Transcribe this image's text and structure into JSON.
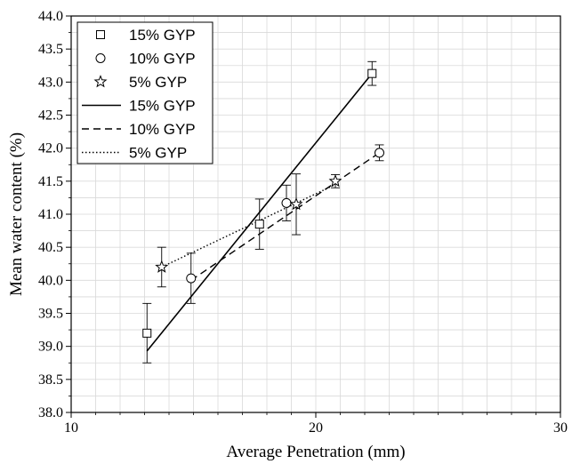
{
  "chart_data": {
    "type": "scatter",
    "xlabel": "Average Penetration (mm)",
    "ylabel": "Mean water content (%)",
    "xlim": [
      10,
      30
    ],
    "ylim": [
      38.0,
      44.0
    ],
    "x_ticks": [
      "10",
      "20",
      "30"
    ],
    "y_ticks": [
      "38.0",
      "38.5",
      "39.0",
      "39.5",
      "40.0",
      "40.5",
      "41.0",
      "41.5",
      "42.0",
      "42.5",
      "43.0",
      "43.5",
      "44.0"
    ],
    "grid": true,
    "legend_position": "top-left",
    "series": [
      {
        "name": "15% GYP",
        "marker": "square",
        "points": [
          {
            "x": 13.1,
            "y": 39.2,
            "err": 0.45
          },
          {
            "x": 17.7,
            "y": 40.85,
            "err": 0.38
          },
          {
            "x": 22.3,
            "y": 43.13,
            "err": 0.18
          }
        ]
      },
      {
        "name": "10% GYP",
        "marker": "circle",
        "points": [
          {
            "x": 14.9,
            "y": 40.03,
            "err": 0.38
          },
          {
            "x": 18.8,
            "y": 41.17,
            "err": 0.27
          },
          {
            "x": 22.6,
            "y": 41.93,
            "err": 0.12
          }
        ]
      },
      {
        "name": "5% GYP",
        "marker": "star",
        "points": [
          {
            "x": 13.7,
            "y": 40.2,
            "err": 0.3
          },
          {
            "x": 19.2,
            "y": 41.15,
            "err": 0.46
          },
          {
            "x": 20.8,
            "y": 41.5,
            "err": 0.1
          }
        ]
      }
    ],
    "fits": [
      {
        "name": "15% GYP",
        "style": "solid",
        "x": [
          13.1,
          22.3
        ],
        "y": [
          38.93,
          43.13
        ]
      },
      {
        "name": "10% GYP",
        "style": "dashed",
        "x": [
          14.9,
          22.6
        ],
        "y": [
          40.0,
          41.93
        ]
      },
      {
        "name": "5% GYP",
        "style": "dotted",
        "x": [
          13.7,
          20.8
        ],
        "y": [
          40.2,
          41.45
        ]
      }
    ]
  }
}
